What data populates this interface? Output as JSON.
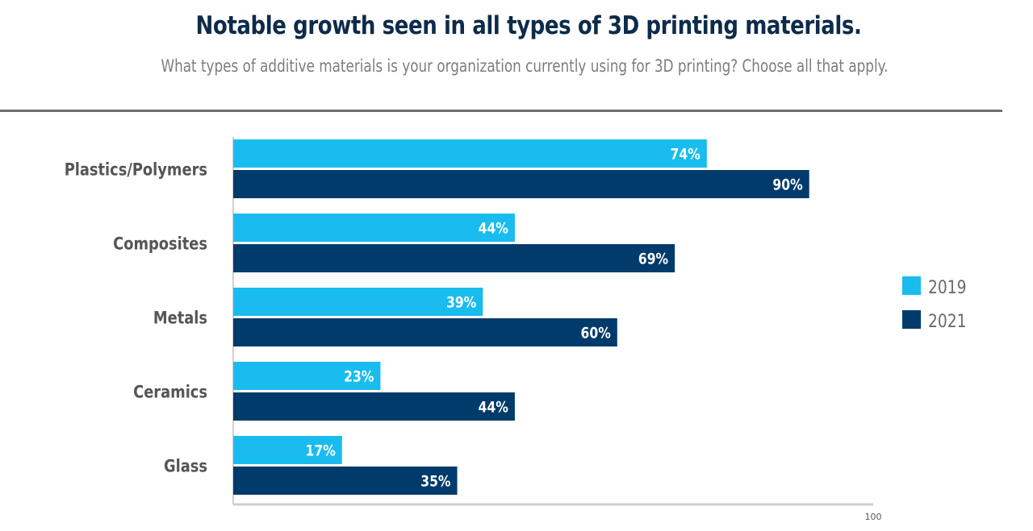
{
  "chart_data": {
    "type": "bar",
    "orientation": "horizontal",
    "title": "Notable growth seen in all types of 3D printing materials.",
    "subtitle": "What types of additive materials is your organization currently using for 3D printing? Choose all that apply.",
    "categories": [
      "Plastics/Polymers",
      "Composites",
      "Metals",
      "Ceramics",
      "Glass"
    ],
    "series": [
      {
        "name": "2019",
        "color": "#19BCEE",
        "values": [
          74,
          44,
          39,
          23,
          17
        ],
        "labels": [
          "74%",
          "44%",
          "39%",
          "23%",
          "17%"
        ]
      },
      {
        "name": "2021",
        "color": "#013B6B",
        "values": [
          90,
          69,
          60,
          44,
          35
        ],
        "labels": [
          "90%",
          "69%",
          "60%",
          "44%",
          "35%"
        ]
      }
    ],
    "xlim": [
      0,
      100
    ],
    "x_tick_labels": [
      "100"
    ],
    "xlabel": "",
    "ylabel": "",
    "grid": false,
    "legend": {
      "position": "right",
      "entries": [
        "2019",
        "2021"
      ]
    }
  }
}
